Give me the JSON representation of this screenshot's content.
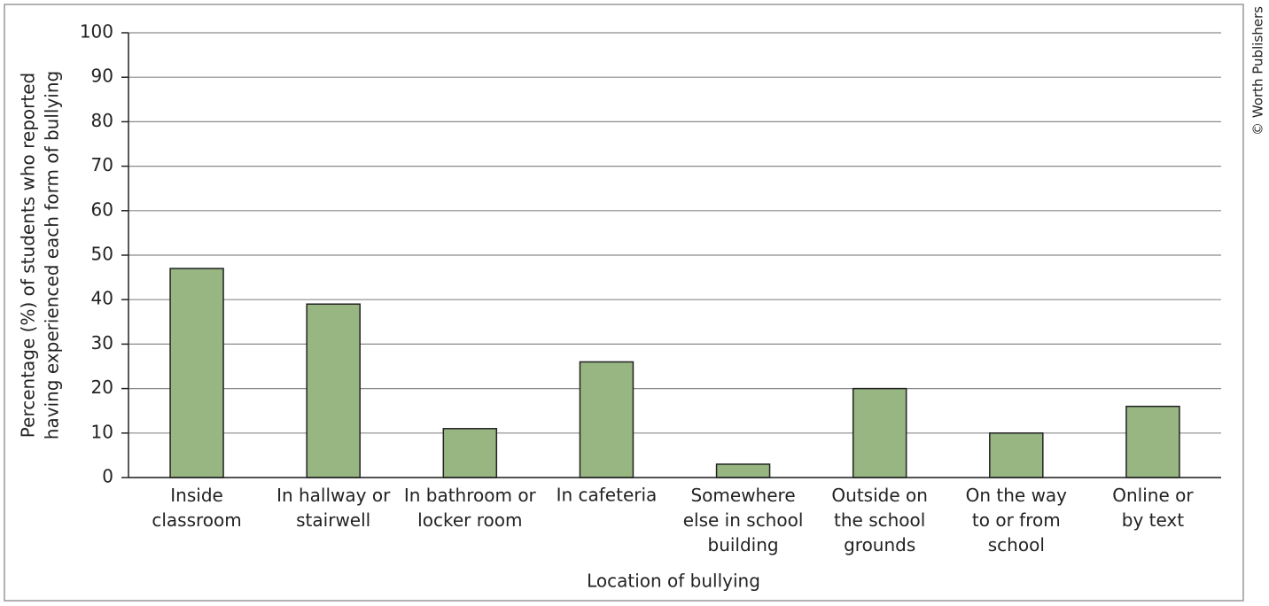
{
  "chart_data": {
    "type": "bar",
    "y_label": "Percentage (%) of students who reported\nhaving experienced each form of bullying",
    "x_label": "Location of bullying",
    "credit": "© Worth Publishers",
    "categories": [
      "Inside\nclassroom",
      "In hallway or\nstairwell",
      "In bathroom or\nlocker room",
      "In cafeteria",
      "Somewhere\nelse in school\nbuilding",
      "Outside on\nthe school\ngrounds",
      "On the way\nto or from\nschool",
      "Online or\nby text"
    ],
    "values": [
      47,
      39,
      11,
      26,
      3,
      20,
      10,
      16
    ],
    "color": "#97b682",
    "ylim": [
      0,
      100
    ],
    "yticks": [
      0,
      10,
      20,
      30,
      40,
      50,
      60,
      70,
      80,
      90,
      100
    ],
    "grid": true
  }
}
